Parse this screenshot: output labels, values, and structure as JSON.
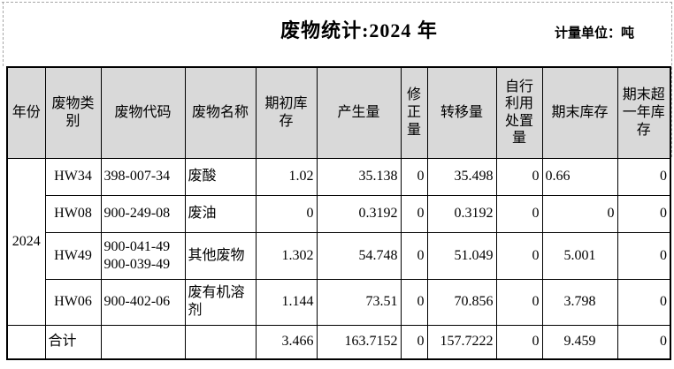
{
  "page": {
    "title": "废物统计:2024 年",
    "unit_label": "计量单位：吨"
  },
  "colors": {
    "header_bg": "#d9d9d9",
    "border": "#000000",
    "page_bg": "#ffffff",
    "guide_dash": "#a6a6a6"
  },
  "table": {
    "columns": [
      {
        "id": "year",
        "label": "年份"
      },
      {
        "id": "category",
        "label": "废物类别"
      },
      {
        "id": "code",
        "label": "废物代码"
      },
      {
        "id": "name",
        "label": "废物名称"
      },
      {
        "id": "opening-stock",
        "label": "期初库存"
      },
      {
        "id": "generated",
        "label": "产生量"
      },
      {
        "id": "corrected",
        "label": "修正量"
      },
      {
        "id": "transferred",
        "label": "转移量"
      },
      {
        "id": "self-disposed",
        "label": "自行利用处置量"
      },
      {
        "id": "closing-stock",
        "label": "期末库存"
      },
      {
        "id": "over-one-year",
        "label": "期末超一年库存"
      }
    ],
    "rows": [
      {
        "name": "row-hw34",
        "cells": [
          {
            "text": "2024",
            "rowspan": 4,
            "align": "center",
            "cellname": "year-cell"
          },
          {
            "text": "HW34",
            "align": "center",
            "cellname": "category-cell"
          },
          {
            "text": "398-007-34",
            "align": "left",
            "cellname": "code-cell"
          },
          {
            "text": "废酸",
            "align": "left",
            "cellname": "name-cell"
          },
          {
            "text": "1.02",
            "align": "right",
            "cellname": "opening-stock-cell"
          },
          {
            "text": "35.138",
            "align": "right",
            "cellname": "generated-cell"
          },
          {
            "text": "0",
            "align": "right",
            "cellname": "corrected-cell"
          },
          {
            "text": "35.498",
            "align": "right",
            "cellname": "transferred-cell"
          },
          {
            "text": "0",
            "align": "right",
            "cellname": "self-disposed-cell"
          },
          {
            "text": "0.66",
            "align": "left",
            "cellname": "closing-stock-cell"
          },
          {
            "text": "0",
            "align": "right",
            "cellname": "over-one-year-cell"
          }
        ]
      },
      {
        "name": "row-hw08",
        "cells": [
          {
            "text": "HW08",
            "align": "center",
            "cellname": "category-cell"
          },
          {
            "text": "900-249-08",
            "align": "left",
            "cellname": "code-cell"
          },
          {
            "text": "废油",
            "align": "left",
            "cellname": "name-cell"
          },
          {
            "text": "0",
            "align": "right",
            "cellname": "opening-stock-cell"
          },
          {
            "text": "0.3192",
            "align": "right",
            "cellname": "generated-cell"
          },
          {
            "text": "0",
            "align": "right",
            "cellname": "corrected-cell"
          },
          {
            "text": "0.3192",
            "align": "right",
            "cellname": "transferred-cell"
          },
          {
            "text": "0",
            "align": "right",
            "cellname": "self-disposed-cell"
          },
          {
            "text": "0",
            "align": "right",
            "cellname": "closing-stock-cell"
          },
          {
            "text": "0",
            "align": "right",
            "cellname": "over-one-year-cell"
          }
        ]
      },
      {
        "name": "row-hw49",
        "cells": [
          {
            "text": "HW49",
            "align": "center",
            "cellname": "category-cell"
          },
          {
            "text": "900-041-49\n900-039-49",
            "align": "left",
            "cellname": "code-cell"
          },
          {
            "text": "其他废物",
            "align": "left",
            "cellname": "name-cell"
          },
          {
            "text": "1.302",
            "align": "right",
            "cellname": "opening-stock-cell"
          },
          {
            "text": "54.748",
            "align": "right",
            "cellname": "generated-cell"
          },
          {
            "text": "0",
            "align": "right",
            "cellname": "corrected-cell"
          },
          {
            "text": "51.049",
            "align": "right",
            "cellname": "transferred-cell"
          },
          {
            "text": "0",
            "align": "right",
            "cellname": "self-disposed-cell"
          },
          {
            "text": "5.001",
            "align": "center",
            "cellname": "closing-stock-cell"
          },
          {
            "text": "0",
            "align": "right",
            "cellname": "over-one-year-cell"
          }
        ]
      },
      {
        "name": "row-hw06",
        "cells": [
          {
            "text": "HW06",
            "align": "center",
            "cellname": "category-cell"
          },
          {
            "text": "900-402-06",
            "align": "left",
            "cellname": "code-cell"
          },
          {
            "text": "废有机溶剂",
            "align": "left",
            "cellname": "name-cell"
          },
          {
            "text": "1.144",
            "align": "right",
            "cellname": "opening-stock-cell"
          },
          {
            "text": "73.51",
            "align": "right",
            "cellname": "generated-cell"
          },
          {
            "text": "0",
            "align": "right",
            "cellname": "corrected-cell"
          },
          {
            "text": "70.856",
            "align": "right",
            "cellname": "transferred-cell"
          },
          {
            "text": "0",
            "align": "right",
            "cellname": "self-disposed-cell"
          },
          {
            "text": "3.798",
            "align": "center",
            "cellname": "closing-stock-cell"
          },
          {
            "text": "0",
            "align": "right",
            "cellname": "over-one-year-cell"
          }
        ]
      },
      {
        "name": "row-total",
        "cells": [
          {
            "text": "",
            "align": "center",
            "cellname": "year-cell"
          },
          {
            "text": "合计",
            "align": "left",
            "cellname": "total-label-cell"
          },
          {
            "text": "",
            "align": "left",
            "cellname": "code-cell"
          },
          {
            "text": "",
            "align": "left",
            "cellname": "name-cell"
          },
          {
            "text": "3.466",
            "align": "right",
            "cellname": "opening-stock-cell"
          },
          {
            "text": "163.7152",
            "align": "right",
            "cellname": "generated-cell"
          },
          {
            "text": "0",
            "align": "right",
            "cellname": "corrected-cell"
          },
          {
            "text": "157.7222",
            "align": "right",
            "cellname": "transferred-cell"
          },
          {
            "text": "0",
            "align": "right",
            "cellname": "self-disposed-cell"
          },
          {
            "text": "9.459",
            "align": "center",
            "cellname": "closing-stock-cell"
          },
          {
            "text": "0",
            "align": "right",
            "cellname": "over-one-year-cell"
          }
        ]
      }
    ]
  }
}
